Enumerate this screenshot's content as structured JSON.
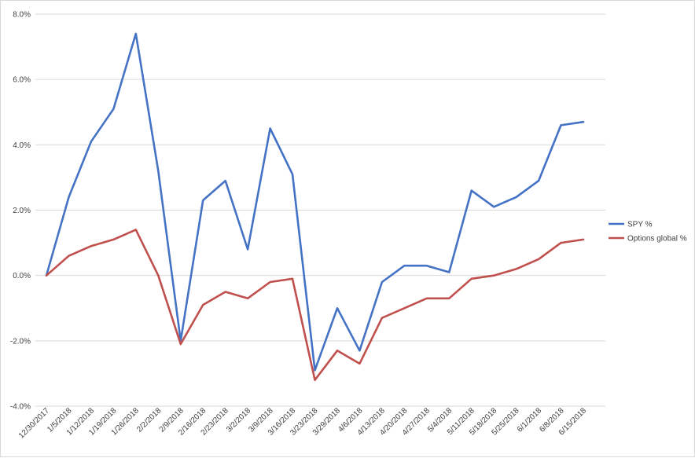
{
  "chart_data": {
    "type": "line",
    "title": "",
    "xlabel": "",
    "ylabel": "",
    "ylim": [
      -4.0,
      8.0
    ],
    "yticks": [
      "-4.0%",
      "-2.0%",
      "0.0%",
      "2.0%",
      "4.0%",
      "6.0%",
      "8.0%"
    ],
    "ytick_values": [
      -4,
      -2,
      0,
      2,
      4,
      6,
      8
    ],
    "grid": true,
    "legend_position": "right",
    "categories": [
      "12/30/2017",
      "1/5/2018",
      "1/12/2018",
      "1/19/2018",
      "1/26/2018",
      "2/2/2018",
      "2/9/2018",
      "2/16/2018",
      "2/23/2018",
      "3/2/2018",
      "3/9/2018",
      "3/16/2018",
      "3/23/2018",
      "3/29/2018",
      "4/6/2018",
      "4/13/2018",
      "4/20/2018",
      "4/27/2018",
      "5/4/2018",
      "5/11/2018",
      "5/18/2018",
      "5/25/2018",
      "6/1/2018",
      "6/8/2018",
      "6/15/2018"
    ],
    "series": [
      {
        "name": "SPY %",
        "color": "#4472c4",
        "values": [
          0.0,
          2.4,
          4.1,
          5.1,
          7.4,
          3.2,
          -2.0,
          2.3,
          2.9,
          0.8,
          4.5,
          3.1,
          -2.9,
          -1.0,
          -2.3,
          -0.2,
          0.3,
          0.3,
          0.1,
          2.6,
          2.1,
          2.4,
          2.9,
          4.6,
          4.7
        ]
      },
      {
        "name": "Options global %",
        "color": "#c0504d",
        "values": [
          0.0,
          0.6,
          0.9,
          1.1,
          1.4,
          0.0,
          -2.1,
          -0.9,
          -0.5,
          -0.7,
          -0.2,
          -0.1,
          -3.2,
          -2.3,
          -2.7,
          -1.3,
          -1.0,
          -0.7,
          -0.7,
          -0.1,
          0.0,
          0.2,
          0.5,
          1.0,
          1.1
        ]
      }
    ]
  }
}
